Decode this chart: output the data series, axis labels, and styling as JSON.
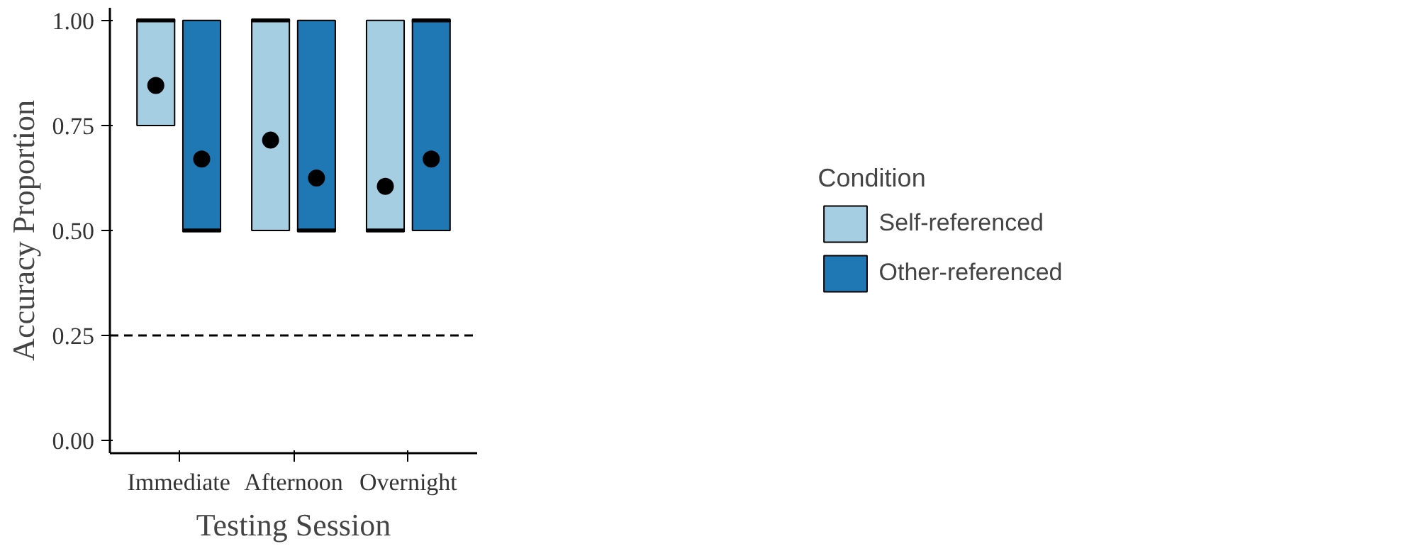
{
  "chart_data": {
    "type": "box",
    "xlabel": "Testing Session",
    "ylabel": "Accuracy Proportion",
    "legend_title": "Condition",
    "legend": "right",
    "grid": false,
    "categories": [
      "Immediate",
      "Afternoon",
      "Overnight"
    ],
    "ylim": [
      -0.03,
      1.03
    ],
    "yticks": [
      {
        "value": 0,
        "label": "0.00"
      },
      {
        "value": 0.25,
        "label": "0.25"
      },
      {
        "value": 0.5,
        "label": "0.50"
      },
      {
        "value": 0.75,
        "label": "0.75"
      },
      {
        "value": 1,
        "label": "1.00"
      }
    ],
    "ref_lines": [
      {
        "axis": "y",
        "value": 0.25,
        "line_style": "dashed",
        "color": "#000000"
      }
    ],
    "series": [
      {
        "name": "Self-referenced",
        "color": "#a6cee3",
        "boxes": [
          {
            "low": 0.75,
            "q1": 0.75,
            "median": 1,
            "q3": 1,
            "high": 1,
            "mean": 0.845
          },
          {
            "low": 0.5,
            "q1": 0.5,
            "median": 1,
            "q3": 1,
            "high": 1,
            "mean": 0.715
          },
          {
            "low": 0.5,
            "q1": 0.5,
            "median": 0.5,
            "q3": 1,
            "high": 1,
            "mean": 0.605
          }
        ]
      },
      {
        "name": "Other-referenced",
        "color": "#1f78b4",
        "boxes": [
          {
            "low": 0.5,
            "q1": 0.5,
            "median": 0.5,
            "q3": 1,
            "high": 1,
            "mean": 0.67
          },
          {
            "low": 0.5,
            "q1": 0.5,
            "median": 0.5,
            "q3": 1,
            "high": 1,
            "mean": 0.625
          },
          {
            "low": 0.5,
            "q1": 0.5,
            "median": 1,
            "q3": 1,
            "high": 1,
            "mean": 0.67
          }
        ]
      }
    ]
  }
}
